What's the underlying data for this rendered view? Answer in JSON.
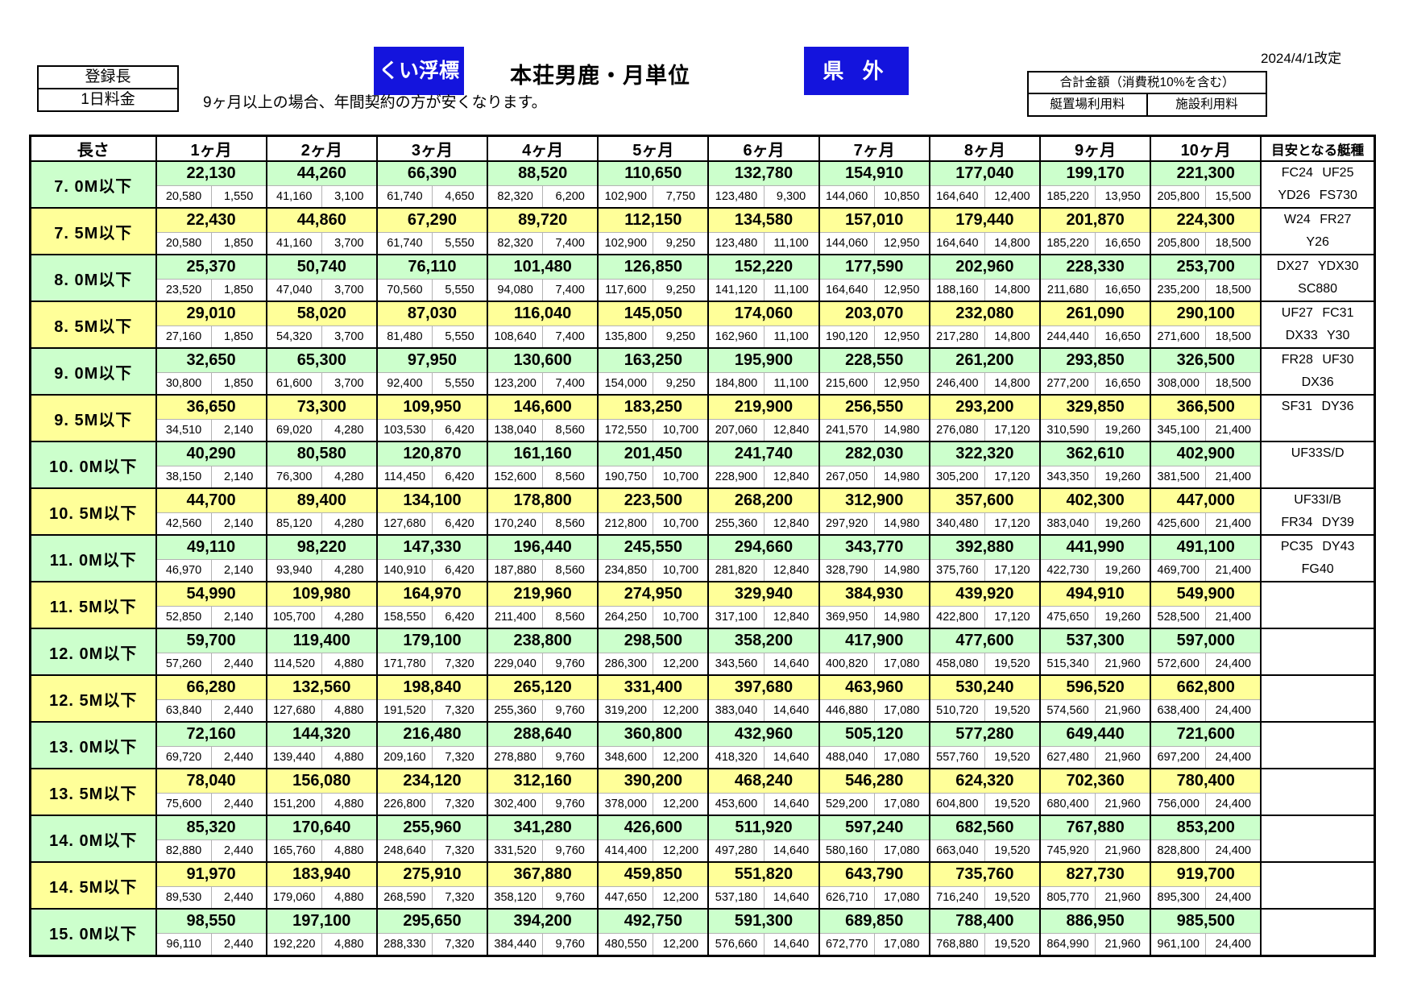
{
  "header": {
    "registered_length": "登録長",
    "daily_fee": "1日料金",
    "pile_buoy_badge": "くい浮標",
    "title": "本荘男鹿・月単位",
    "note": "9ヶ月以上の場合、年間契約の方が安くなります。",
    "outside_pref_badge": "県 外",
    "revision": "2024/4/1改定",
    "legend_total": "合計金額（消費税10%を含む）",
    "legend_mooring": "艇置場利用料",
    "legend_facility": "施設利用料"
  },
  "colors": {
    "accent_blue": "#1414dd",
    "row_green": "#ccffcc",
    "row_yellow": "#ffff99",
    "grid_black": "#000000",
    "grid_light": "#b3b3b3"
  },
  "table": {
    "length_header": "長さ",
    "months": [
      "1ヶ月",
      "2ヶ月",
      "3ヶ月",
      "4ヶ月",
      "5ヶ月",
      "6ヶ月",
      "7ヶ月",
      "8ヶ月",
      "9ヶ月",
      "10ヶ月"
    ],
    "boat_header": "目安となる艇種",
    "rows": [
      {
        "length": "7. 0M以下",
        "color": "green",
        "totals": [
          "22,130",
          "44,260",
          "66,390",
          "88,520",
          "110,650",
          "132,780",
          "154,910",
          "177,040",
          "199,170",
          "221,300"
        ],
        "mooring": [
          "20,580",
          "41,160",
          "61,740",
          "82,320",
          "102,900",
          "123,480",
          "144,060",
          "164,640",
          "185,220",
          "205,800"
        ],
        "facility": [
          "1,550",
          "3,100",
          "4,650",
          "6,200",
          "7,750",
          "9,300",
          "10,850",
          "12,400",
          "13,950",
          "15,500"
        ],
        "boats": [
          "FC24 UF25",
          "YD26 FS730"
        ]
      },
      {
        "length": "7. 5M以下",
        "color": "yellow",
        "totals": [
          "22,430",
          "44,860",
          "67,290",
          "89,720",
          "112,150",
          "134,580",
          "157,010",
          "179,440",
          "201,870",
          "224,300"
        ],
        "mooring": [
          "20,580",
          "41,160",
          "61,740",
          "82,320",
          "102,900",
          "123,480",
          "144,060",
          "164,640",
          "185,220",
          "205,800"
        ],
        "facility": [
          "1,850",
          "3,700",
          "5,550",
          "7,400",
          "9,250",
          "11,100",
          "12,950",
          "14,800",
          "16,650",
          "18,500"
        ],
        "boats": [
          "W24 FR27",
          "Y26"
        ]
      },
      {
        "length": "8. 0M以下",
        "color": "green",
        "totals": [
          "25,370",
          "50,740",
          "76,110",
          "101,480",
          "126,850",
          "152,220",
          "177,590",
          "202,960",
          "228,330",
          "253,700"
        ],
        "mooring": [
          "23,520",
          "47,040",
          "70,560",
          "94,080",
          "117,600",
          "141,120",
          "164,640",
          "188,160",
          "211,680",
          "235,200"
        ],
        "facility": [
          "1,850",
          "3,700",
          "5,550",
          "7,400",
          "9,250",
          "11,100",
          "12,950",
          "14,800",
          "16,650",
          "18,500"
        ],
        "boats": [
          "DX27 YDX30",
          "SC880"
        ]
      },
      {
        "length": "8. 5M以下",
        "color": "yellow",
        "totals": [
          "29,010",
          "58,020",
          "87,030",
          "116,040",
          "145,050",
          "174,060",
          "203,070",
          "232,080",
          "261,090",
          "290,100"
        ],
        "mooring": [
          "27,160",
          "54,320",
          "81,480",
          "108,640",
          "135,800",
          "162,960",
          "190,120",
          "217,280",
          "244,440",
          "271,600"
        ],
        "facility": [
          "1,850",
          "3,700",
          "5,550",
          "7,400",
          "9,250",
          "11,100",
          "12,950",
          "14,800",
          "16,650",
          "18,500"
        ],
        "boats": [
          "UF27 FC31",
          "DX33 Y30"
        ]
      },
      {
        "length": "9. 0M以下",
        "color": "green",
        "totals": [
          "32,650",
          "65,300",
          "97,950",
          "130,600",
          "163,250",
          "195,900",
          "228,550",
          "261,200",
          "293,850",
          "326,500"
        ],
        "mooring": [
          "30,800",
          "61,600",
          "92,400",
          "123,200",
          "154,000",
          "184,800",
          "215,600",
          "246,400",
          "277,200",
          "308,000"
        ],
        "facility": [
          "1,850",
          "3,700",
          "5,550",
          "7,400",
          "9,250",
          "11,100",
          "12,950",
          "14,800",
          "16,650",
          "18,500"
        ],
        "boats": [
          "FR28 UF30",
          "DX36"
        ]
      },
      {
        "length": "9. 5M以下",
        "color": "yellow",
        "totals": [
          "36,650",
          "73,300",
          "109,950",
          "146,600",
          "183,250",
          "219,900",
          "256,550",
          "293,200",
          "329,850",
          "366,500"
        ],
        "mooring": [
          "34,510",
          "69,020",
          "103,530",
          "138,040",
          "172,550",
          "207,060",
          "241,570",
          "276,080",
          "310,590",
          "345,100"
        ],
        "facility": [
          "2,140",
          "4,280",
          "6,420",
          "8,560",
          "10,700",
          "12,840",
          "14,980",
          "17,120",
          "19,260",
          "21,400"
        ],
        "boats": [
          "SF31 DY36",
          ""
        ]
      },
      {
        "length": "10. 0M以下",
        "color": "green",
        "totals": [
          "40,290",
          "80,580",
          "120,870",
          "161,160",
          "201,450",
          "241,740",
          "282,030",
          "322,320",
          "362,610",
          "402,900"
        ],
        "mooring": [
          "38,150",
          "76,300",
          "114,450",
          "152,600",
          "190,750",
          "228,900",
          "267,050",
          "305,200",
          "343,350",
          "381,500"
        ],
        "facility": [
          "2,140",
          "4,280",
          "6,420",
          "8,560",
          "10,700",
          "12,840",
          "14,980",
          "17,120",
          "19,260",
          "21,400"
        ],
        "boats": [
          "UF33S/D",
          ""
        ]
      },
      {
        "length": "10. 5M以下",
        "color": "yellow",
        "totals": [
          "44,700",
          "89,400",
          "134,100",
          "178,800",
          "223,500",
          "268,200",
          "312,900",
          "357,600",
          "402,300",
          "447,000"
        ],
        "mooring": [
          "42,560",
          "85,120",
          "127,680",
          "170,240",
          "212,800",
          "255,360",
          "297,920",
          "340,480",
          "383,040",
          "425,600"
        ],
        "facility": [
          "2,140",
          "4,280",
          "6,420",
          "8,560",
          "10,700",
          "12,840",
          "14,980",
          "17,120",
          "19,260",
          "21,400"
        ],
        "boats": [
          "UF33I/B",
          "FR34 DY39"
        ]
      },
      {
        "length": "11. 0M以下",
        "color": "green",
        "totals": [
          "49,110",
          "98,220",
          "147,330",
          "196,440",
          "245,550",
          "294,660",
          "343,770",
          "392,880",
          "441,990",
          "491,100"
        ],
        "mooring": [
          "46,970",
          "93,940",
          "140,910",
          "187,880",
          "234,850",
          "281,820",
          "328,790",
          "375,760",
          "422,730",
          "469,700"
        ],
        "facility": [
          "2,140",
          "4,280",
          "6,420",
          "8,560",
          "10,700",
          "12,840",
          "14,980",
          "17,120",
          "19,260",
          "21,400"
        ],
        "boats": [
          "PC35 DY43",
          "FG40"
        ]
      },
      {
        "length": "11. 5M以下",
        "color": "yellow",
        "totals": [
          "54,990",
          "109,980",
          "164,970",
          "219,960",
          "274,950",
          "329,940",
          "384,930",
          "439,920",
          "494,910",
          "549,900"
        ],
        "mooring": [
          "52,850",
          "105,700",
          "158,550",
          "211,400",
          "264,250",
          "317,100",
          "369,950",
          "422,800",
          "475,650",
          "528,500"
        ],
        "facility": [
          "2,140",
          "4,280",
          "6,420",
          "8,560",
          "10,700",
          "12,840",
          "14,980",
          "17,120",
          "19,260",
          "21,400"
        ],
        "boats": [
          "",
          ""
        ]
      },
      {
        "length": "12. 0M以下",
        "color": "green",
        "totals": [
          "59,700",
          "119,400",
          "179,100",
          "238,800",
          "298,500",
          "358,200",
          "417,900",
          "477,600",
          "537,300",
          "597,000"
        ],
        "mooring": [
          "57,260",
          "114,520",
          "171,780",
          "229,040",
          "286,300",
          "343,560",
          "400,820",
          "458,080",
          "515,340",
          "572,600"
        ],
        "facility": [
          "2,440",
          "4,880",
          "7,320",
          "9,760",
          "12,200",
          "14,640",
          "17,080",
          "19,520",
          "21,960",
          "24,400"
        ],
        "boats": [
          "",
          ""
        ]
      },
      {
        "length": "12. 5M以下",
        "color": "yellow",
        "totals": [
          "66,280",
          "132,560",
          "198,840",
          "265,120",
          "331,400",
          "397,680",
          "463,960",
          "530,240",
          "596,520",
          "662,800"
        ],
        "mooring": [
          "63,840",
          "127,680",
          "191,520",
          "255,360",
          "319,200",
          "383,040",
          "446,880",
          "510,720",
          "574,560",
          "638,400"
        ],
        "facility": [
          "2,440",
          "4,880",
          "7,320",
          "9,760",
          "12,200",
          "14,640",
          "17,080",
          "19,520",
          "21,960",
          "24,400"
        ],
        "boats": [
          "",
          ""
        ]
      },
      {
        "length": "13. 0M以下",
        "color": "green",
        "totals": [
          "72,160",
          "144,320",
          "216,480",
          "288,640",
          "360,800",
          "432,960",
          "505,120",
          "577,280",
          "649,440",
          "721,600"
        ],
        "mooring": [
          "69,720",
          "139,440",
          "209,160",
          "278,880",
          "348,600",
          "418,320",
          "488,040",
          "557,760",
          "627,480",
          "697,200"
        ],
        "facility": [
          "2,440",
          "4,880",
          "7,320",
          "9,760",
          "12,200",
          "14,640",
          "17,080",
          "19,520",
          "21,960",
          "24,400"
        ],
        "boats": [
          "",
          ""
        ]
      },
      {
        "length": "13. 5M以下",
        "color": "yellow",
        "totals": [
          "78,040",
          "156,080",
          "234,120",
          "312,160",
          "390,200",
          "468,240",
          "546,280",
          "624,320",
          "702,360",
          "780,400"
        ],
        "mooring": [
          "75,600",
          "151,200",
          "226,800",
          "302,400",
          "378,000",
          "453,600",
          "529,200",
          "604,800",
          "680,400",
          "756,000"
        ],
        "facility": [
          "2,440",
          "4,880",
          "7,320",
          "9,760",
          "12,200",
          "14,640",
          "17,080",
          "19,520",
          "21,960",
          "24,400"
        ],
        "boats": [
          "",
          ""
        ]
      },
      {
        "length": "14. 0M以下",
        "color": "green",
        "totals": [
          "85,320",
          "170,640",
          "255,960",
          "341,280",
          "426,600",
          "511,920",
          "597,240",
          "682,560",
          "767,880",
          "853,200"
        ],
        "mooring": [
          "82,880",
          "165,760",
          "248,640",
          "331,520",
          "414,400",
          "497,280",
          "580,160",
          "663,040",
          "745,920",
          "828,800"
        ],
        "facility": [
          "2,440",
          "4,880",
          "7,320",
          "9,760",
          "12,200",
          "14,640",
          "17,080",
          "19,520",
          "21,960",
          "24,400"
        ],
        "boats": [
          "",
          ""
        ]
      },
      {
        "length": "14. 5M以下",
        "color": "yellow",
        "totals": [
          "91,970",
          "183,940",
          "275,910",
          "367,880",
          "459,850",
          "551,820",
          "643,790",
          "735,760",
          "827,730",
          "919,700"
        ],
        "mooring": [
          "89,530",
          "179,060",
          "268,590",
          "358,120",
          "447,650",
          "537,180",
          "626,710",
          "716,240",
          "805,770",
          "895,300"
        ],
        "facility": [
          "2,440",
          "4,880",
          "7,320",
          "9,760",
          "12,200",
          "14,640",
          "17,080",
          "19,520",
          "21,960",
          "24,400"
        ],
        "boats": [
          "",
          ""
        ]
      },
      {
        "length": "15. 0M以下",
        "color": "green",
        "totals": [
          "98,550",
          "197,100",
          "295,650",
          "394,200",
          "492,750",
          "591,300",
          "689,850",
          "788,400",
          "886,950",
          "985,500"
        ],
        "mooring": [
          "96,110",
          "192,220",
          "288,330",
          "384,440",
          "480,550",
          "576,660",
          "672,770",
          "768,880",
          "864,990",
          "961,100"
        ],
        "facility": [
          "2,440",
          "4,880",
          "7,320",
          "9,760",
          "12,200",
          "14,640",
          "17,080",
          "19,520",
          "21,960",
          "24,400"
        ],
        "boats": [
          "",
          ""
        ]
      }
    ]
  }
}
